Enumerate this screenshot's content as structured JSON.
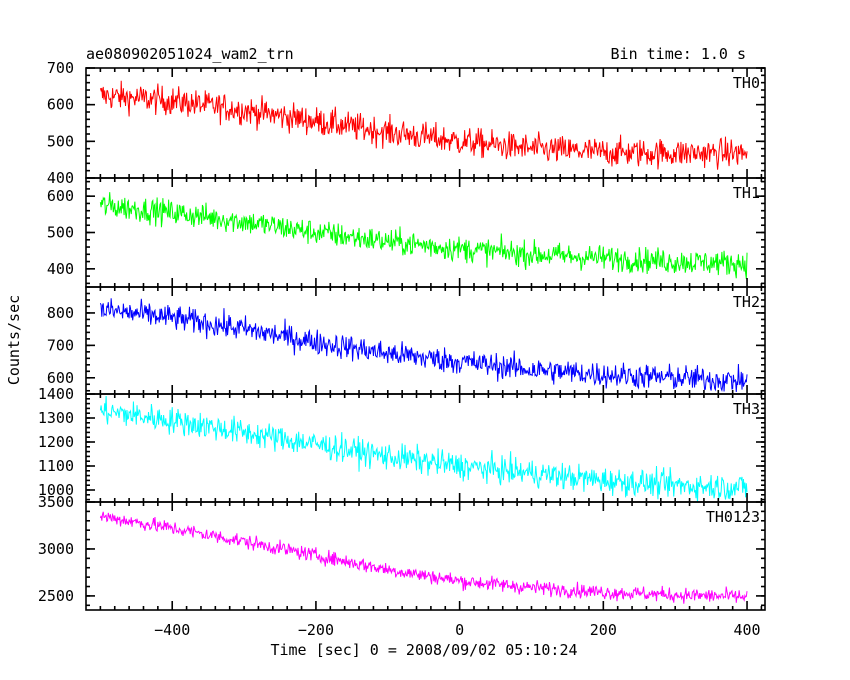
{
  "header": {
    "title": "ae080902051024_wam2_trn",
    "bin_time": "Bin time: 1.0 s"
  },
  "chart_data": {
    "type": "line",
    "title": "ae080902051024_wam2_trn",
    "subtitle": "Bin time: 1.0 s",
    "xlabel": "Time [sec] 0 = 2008/09/02 05:10:24",
    "ylabel": "Counts/sec",
    "xlim": [
      -520,
      425
    ],
    "x_ticks": [
      -400,
      -200,
      0,
      200,
      400
    ],
    "x_tick_labels": [
      "−400",
      "−200",
      "0",
      "200",
      "400"
    ],
    "bin_time_s": 1.0,
    "x_start": -500,
    "x_end": 400,
    "panels": [
      {
        "name": "TH0",
        "color": "#ff0000",
        "ylim": [
          400,
          700
        ],
        "y_ticks": [
          400,
          500,
          600,
          700
        ],
        "trend": {
          "x": [
            -500,
            -400,
            -300,
            -200,
            -100,
            0,
            100,
            200,
            300,
            400
          ],
          "y": [
            625,
            610,
            585,
            555,
            525,
            500,
            480,
            470,
            468,
            468
          ]
        },
        "noise_amplitude": 28
      },
      {
        "name": "TH1",
        "color": "#00ff00",
        "ylim": [
          350,
          650
        ],
        "y_ticks": [
          400,
          500,
          600
        ],
        "trend": {
          "x": [
            -500,
            -400,
            -300,
            -200,
            -100,
            0,
            100,
            200,
            300,
            400
          ],
          "y": [
            575,
            555,
            530,
            500,
            475,
            455,
            440,
            430,
            420,
            415
          ]
        },
        "noise_amplitude": 25
      },
      {
        "name": "TH2",
        "color": "#0000ff",
        "ylim": [
          550,
          880
        ],
        "y_ticks": [
          600,
          700,
          800
        ],
        "trend": {
          "x": [
            -500,
            -400,
            -300,
            -200,
            -100,
            0,
            100,
            200,
            300,
            400
          ],
          "y": [
            810,
            785,
            750,
            710,
            675,
            650,
            625,
            610,
            600,
            590
          ]
        },
        "noise_amplitude": 28
      },
      {
        "name": "TH3",
        "color": "#00ffff",
        "ylim": [
          950,
          1400
        ],
        "y_ticks": [
          1000,
          1100,
          1200,
          1300,
          1400
        ],
        "trend": {
          "x": [
            -500,
            -400,
            -300,
            -200,
            -100,
            0,
            100,
            200,
            300,
            400
          ],
          "y": [
            1330,
            1290,
            1240,
            1190,
            1140,
            1100,
            1070,
            1040,
            1020,
            1010
          ]
        },
        "noise_amplitude": 40
      },
      {
        "name": "TH0123",
        "color": "#ff00ff",
        "ylim": [
          2350,
          3500
        ],
        "y_ticks": [
          2500,
          3000,
          3500
        ],
        "trend": {
          "x": [
            -500,
            -400,
            -300,
            -200,
            -100,
            0,
            100,
            200,
            300,
            400
          ],
          "y": [
            3350,
            3220,
            3080,
            2930,
            2780,
            2660,
            2590,
            2540,
            2510,
            2490
          ]
        },
        "noise_amplitude": 55
      }
    ]
  }
}
